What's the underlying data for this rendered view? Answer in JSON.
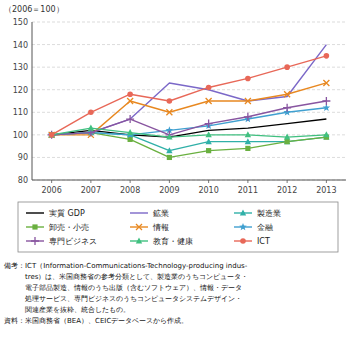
{
  "chart_data": {
    "type": "line",
    "y_label": "（2006＝100）",
    "x": [
      2006,
      2007,
      2008,
      2009,
      2010,
      2011,
      2012,
      2013
    ],
    "xlim": [
      2005.5,
      2013.5
    ],
    "xticks": [
      2006,
      2007,
      2008,
      2009,
      2010,
      2011,
      2012,
      2013
    ],
    "ylim": [
      80,
      150
    ],
    "yticks": [
      80,
      90,
      100,
      110,
      120,
      130,
      140,
      150
    ],
    "grid": true,
    "legend": "bottom",
    "series": [
      {
        "name": "実質 GDP",
        "color": "#000000",
        "marker": "none",
        "values": [
          100,
          102,
          100,
          99,
          102,
          103,
          105,
          107
        ]
      },
      {
        "name": "鉱業",
        "color": "#7b68c8",
        "marker": "none",
        "values": [
          100,
          101,
          107,
          123,
          120,
          115,
          117,
          140
        ]
      },
      {
        "name": "製造業",
        "color": "#30b0a8",
        "marker": "triangle",
        "values": [
          100,
          101,
          100,
          93,
          97,
          97,
          97,
          99
        ]
      },
      {
        "name": "卸売・小売",
        "color": "#6ab040",
        "marker": "square",
        "values": [
          100,
          101,
          98,
          90,
          93,
          94,
          97,
          99
        ]
      },
      {
        "name": "情報",
        "color": "#e88820",
        "marker": "x",
        "values": [
          100,
          100,
          115,
          110,
          115,
          115,
          118,
          123
        ]
      },
      {
        "name": "金融",
        "color": "#40a0d0",
        "marker": "star",
        "values": [
          100,
          101,
          100,
          102,
          104,
          107,
          110,
          112
        ]
      },
      {
        "name": "専門ビジネス",
        "color": "#8855a0",
        "marker": "plus",
        "values": [
          100,
          101,
          107,
          100,
          105,
          108,
          112,
          115
        ]
      },
      {
        "name": "教育・健康",
        "color": "#40c080",
        "marker": "triangle",
        "values": [
          100,
          103,
          101,
          99,
          100,
          100,
          99,
          100
        ]
      },
      {
        "name": "ICT",
        "color": "#e86858",
        "marker": "circle",
        "values": [
          100,
          110,
          118,
          115,
          121,
          125,
          130,
          135
        ]
      }
    ],
    "annotations": [
      "備考：ICT（Information-Communications-Technology-producing indus-",
      "　　　tres）は、米国商務省の参考分類として、製造業のうちコンピュータ・",
      "　　　電子部品製造、情報のうち出版（含むソフトウェア）、情報・データ",
      "　　　処理サービス、専門ビジネスのうちコンピュータシステムデザイン・",
      "　　　関連産業を抜粋、統合したもの。",
      "資料：米国商務省（BEA）、CEICデータベースから作成。"
    ]
  }
}
